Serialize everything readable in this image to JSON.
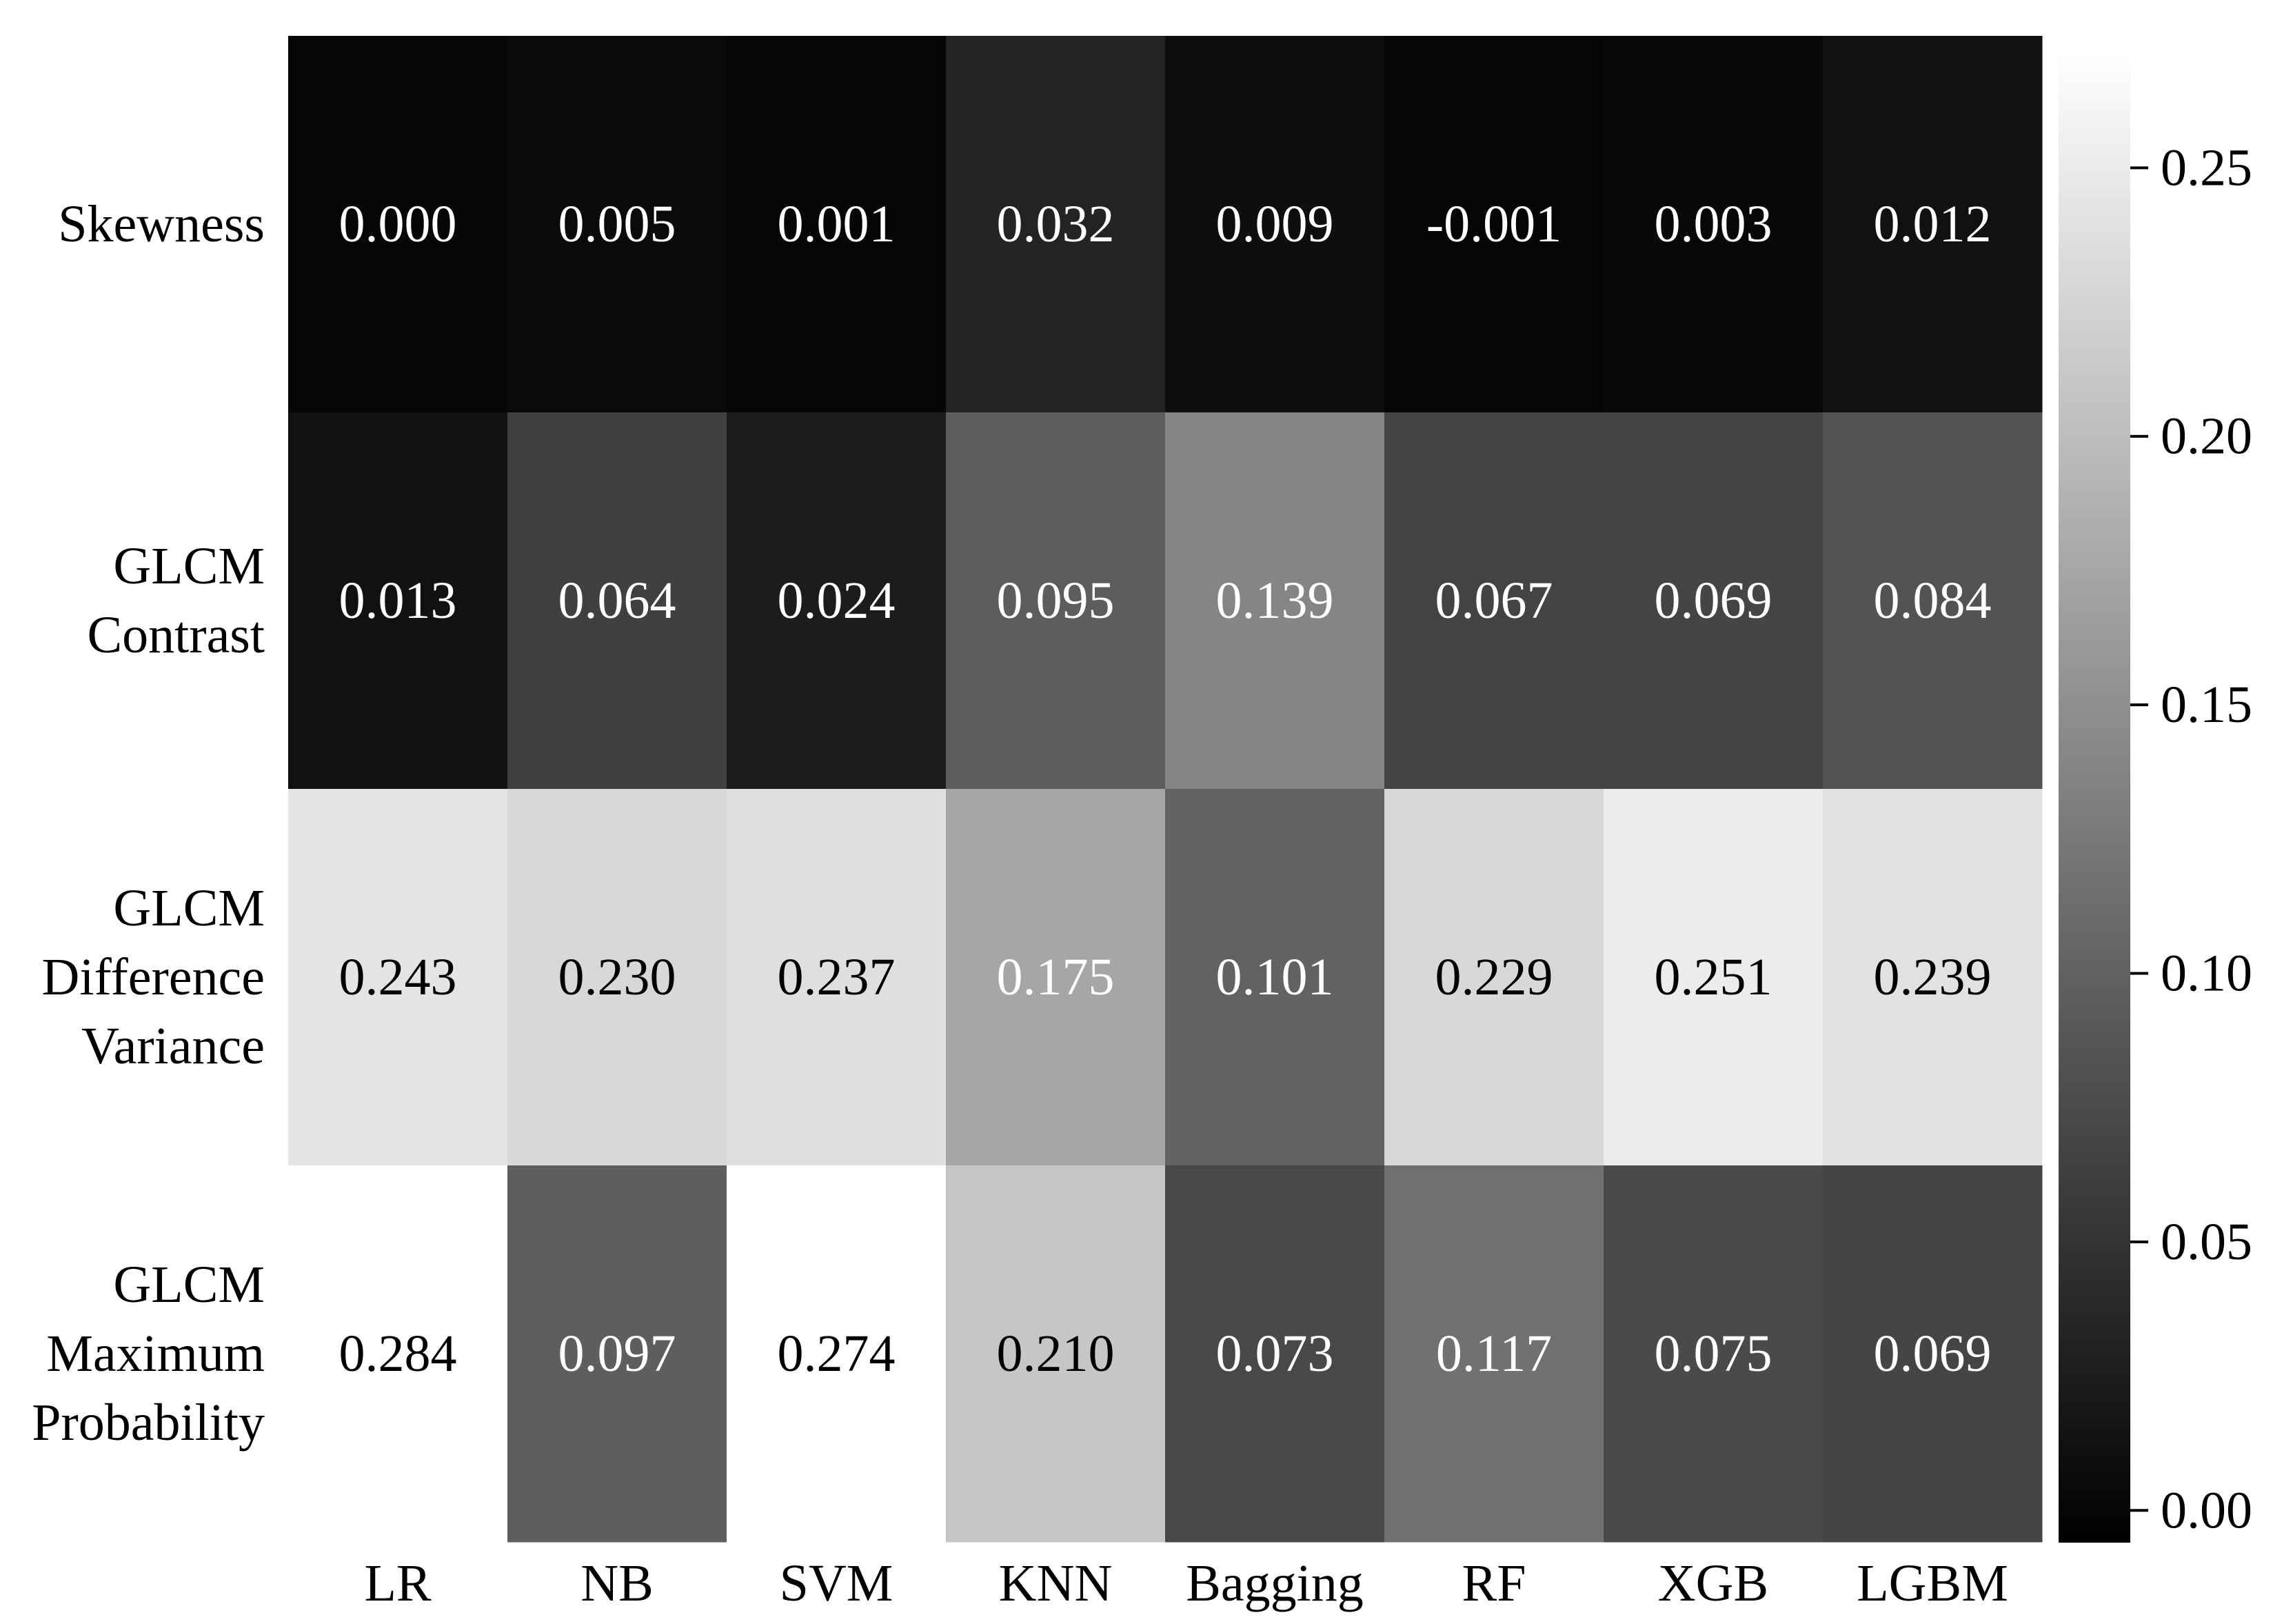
{
  "chart_data": {
    "type": "heatmap",
    "title": "",
    "xlabel": "",
    "ylabel": "",
    "x_categories": [
      "LR",
      "NB",
      "SVM",
      "KNN",
      "Bagging",
      "RF",
      "XGB",
      "LGBM"
    ],
    "y_categories": [
      [
        "Skewness"
      ],
      [
        "GLCM",
        "Contrast"
      ],
      [
        "GLCM",
        "Difference",
        "Variance"
      ],
      [
        "GLCM",
        "Maximum",
        "Probability"
      ]
    ],
    "values": [
      [
        0.0,
        0.005,
        0.001,
        0.032,
        0.009,
        -0.001,
        0.003,
        0.012
      ],
      [
        0.013,
        0.064,
        0.024,
        0.095,
        0.139,
        0.067,
        0.069,
        0.084
      ],
      [
        0.243,
        0.23,
        0.237,
        0.175,
        0.101,
        0.229,
        0.251,
        0.239
      ],
      [
        0.284,
        0.097,
        0.274,
        0.21,
        0.073,
        0.117,
        0.075,
        0.069
      ]
    ],
    "cell_labels": [
      [
        "0.000",
        "0.005",
        "0.001",
        "0.032",
        "0.009",
        "-0.001",
        "0.003",
        "0.012"
      ],
      [
        "0.013",
        "0.064",
        "0.024",
        "0.095",
        "0.139",
        "0.067",
        "0.069",
        "0.084"
      ],
      [
        "0.243",
        "0.230",
        "0.237",
        "0.175",
        "0.101",
        "0.229",
        "0.251",
        "0.239"
      ],
      [
        "0.284",
        "0.097",
        "0.274",
        "0.210",
        "0.073",
        "0.117",
        "0.075",
        "0.069"
      ]
    ],
    "colormap": "grayscale",
    "vmin": -0.006,
    "vmax": 0.272,
    "colorbar": {
      "ticks": [
        0.0,
        0.05,
        0.1,
        0.15,
        0.2,
        0.25
      ],
      "tick_labels": [
        "0.00",
        "0.05",
        "0.10",
        "0.15",
        "0.20",
        "0.25"
      ],
      "placement": "right"
    },
    "colors": {
      "low": "#000000",
      "high": "#ffffff"
    },
    "grid": false
  }
}
